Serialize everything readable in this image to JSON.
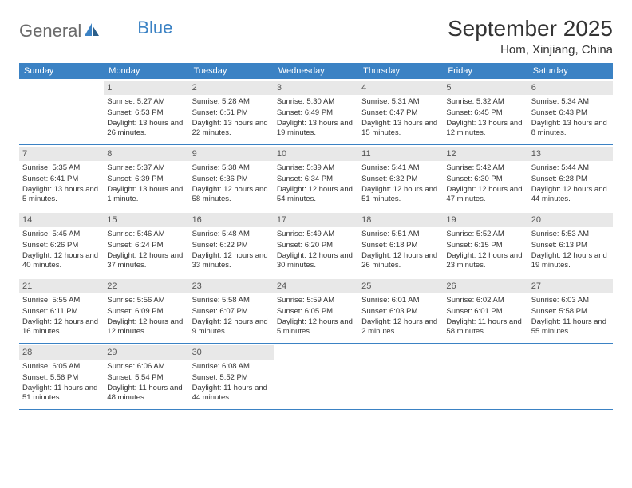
{
  "brand": {
    "name1": "General",
    "name2": "Blue"
  },
  "title": "September 2025",
  "location": "Hom, Xinjiang, China",
  "dows": [
    "Sunday",
    "Monday",
    "Tuesday",
    "Wednesday",
    "Thursday",
    "Friday",
    "Saturday"
  ],
  "colors": {
    "header_bg": "#3b82c4",
    "daynum_bg": "#e8e8e8",
    "text": "#333333",
    "logo_gray": "#6b6b6b"
  },
  "start_offset": 1,
  "days": [
    {
      "n": 1,
      "sunrise": "5:27 AM",
      "sunset": "6:53 PM",
      "daylight": "13 hours and 26 minutes."
    },
    {
      "n": 2,
      "sunrise": "5:28 AM",
      "sunset": "6:51 PM",
      "daylight": "13 hours and 22 minutes."
    },
    {
      "n": 3,
      "sunrise": "5:30 AM",
      "sunset": "6:49 PM",
      "daylight": "13 hours and 19 minutes."
    },
    {
      "n": 4,
      "sunrise": "5:31 AM",
      "sunset": "6:47 PM",
      "daylight": "13 hours and 15 minutes."
    },
    {
      "n": 5,
      "sunrise": "5:32 AM",
      "sunset": "6:45 PM",
      "daylight": "13 hours and 12 minutes."
    },
    {
      "n": 6,
      "sunrise": "5:34 AM",
      "sunset": "6:43 PM",
      "daylight": "13 hours and 8 minutes."
    },
    {
      "n": 7,
      "sunrise": "5:35 AM",
      "sunset": "6:41 PM",
      "daylight": "13 hours and 5 minutes."
    },
    {
      "n": 8,
      "sunrise": "5:37 AM",
      "sunset": "6:39 PM",
      "daylight": "13 hours and 1 minute."
    },
    {
      "n": 9,
      "sunrise": "5:38 AM",
      "sunset": "6:36 PM",
      "daylight": "12 hours and 58 minutes."
    },
    {
      "n": 10,
      "sunrise": "5:39 AM",
      "sunset": "6:34 PM",
      "daylight": "12 hours and 54 minutes."
    },
    {
      "n": 11,
      "sunrise": "5:41 AM",
      "sunset": "6:32 PM",
      "daylight": "12 hours and 51 minutes."
    },
    {
      "n": 12,
      "sunrise": "5:42 AM",
      "sunset": "6:30 PM",
      "daylight": "12 hours and 47 minutes."
    },
    {
      "n": 13,
      "sunrise": "5:44 AM",
      "sunset": "6:28 PM",
      "daylight": "12 hours and 44 minutes."
    },
    {
      "n": 14,
      "sunrise": "5:45 AM",
      "sunset": "6:26 PM",
      "daylight": "12 hours and 40 minutes."
    },
    {
      "n": 15,
      "sunrise": "5:46 AM",
      "sunset": "6:24 PM",
      "daylight": "12 hours and 37 minutes."
    },
    {
      "n": 16,
      "sunrise": "5:48 AM",
      "sunset": "6:22 PM",
      "daylight": "12 hours and 33 minutes."
    },
    {
      "n": 17,
      "sunrise": "5:49 AM",
      "sunset": "6:20 PM",
      "daylight": "12 hours and 30 minutes."
    },
    {
      "n": 18,
      "sunrise": "5:51 AM",
      "sunset": "6:18 PM",
      "daylight": "12 hours and 26 minutes."
    },
    {
      "n": 19,
      "sunrise": "5:52 AM",
      "sunset": "6:15 PM",
      "daylight": "12 hours and 23 minutes."
    },
    {
      "n": 20,
      "sunrise": "5:53 AM",
      "sunset": "6:13 PM",
      "daylight": "12 hours and 19 minutes."
    },
    {
      "n": 21,
      "sunrise": "5:55 AM",
      "sunset": "6:11 PM",
      "daylight": "12 hours and 16 minutes."
    },
    {
      "n": 22,
      "sunrise": "5:56 AM",
      "sunset": "6:09 PM",
      "daylight": "12 hours and 12 minutes."
    },
    {
      "n": 23,
      "sunrise": "5:58 AM",
      "sunset": "6:07 PM",
      "daylight": "12 hours and 9 minutes."
    },
    {
      "n": 24,
      "sunrise": "5:59 AM",
      "sunset": "6:05 PM",
      "daylight": "12 hours and 5 minutes."
    },
    {
      "n": 25,
      "sunrise": "6:01 AM",
      "sunset": "6:03 PM",
      "daylight": "12 hours and 2 minutes."
    },
    {
      "n": 26,
      "sunrise": "6:02 AM",
      "sunset": "6:01 PM",
      "daylight": "11 hours and 58 minutes."
    },
    {
      "n": 27,
      "sunrise": "6:03 AM",
      "sunset": "5:58 PM",
      "daylight": "11 hours and 55 minutes."
    },
    {
      "n": 28,
      "sunrise": "6:05 AM",
      "sunset": "5:56 PM",
      "daylight": "11 hours and 51 minutes."
    },
    {
      "n": 29,
      "sunrise": "6:06 AM",
      "sunset": "5:54 PM",
      "daylight": "11 hours and 48 minutes."
    },
    {
      "n": 30,
      "sunrise": "6:08 AM",
      "sunset": "5:52 PM",
      "daylight": "11 hours and 44 minutes."
    }
  ],
  "labels": {
    "sunrise": "Sunrise:",
    "sunset": "Sunset:",
    "daylight": "Daylight:"
  }
}
